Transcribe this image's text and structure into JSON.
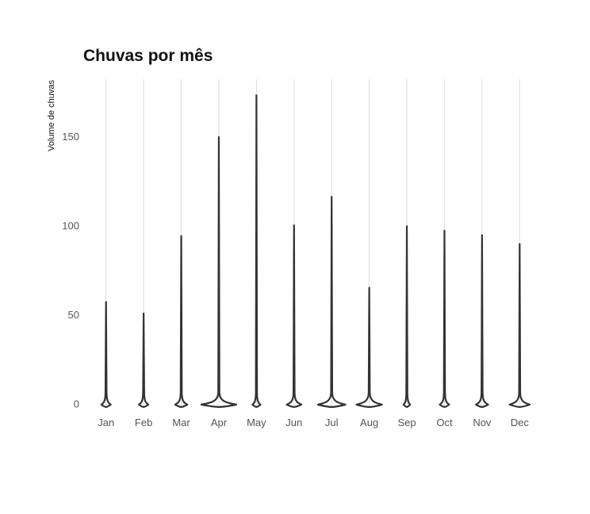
{
  "chart_data": {
    "type": "violin",
    "title": "Chuvas por mês",
    "ylabel": "Volume de chuvas",
    "xlabel": "",
    "categories": [
      "Jan",
      "Feb",
      "Mar",
      "Apr",
      "May",
      "Jun",
      "Jul",
      "Aug",
      "Sep",
      "Oct",
      "Nov",
      "Dec"
    ],
    "max_values": [
      57,
      50.5,
      94,
      149.5,
      173,
      100,
      116,
      65,
      99.5,
      97,
      94.5,
      89.5
    ],
    "base_width_relative": [
      0.27,
      0.27,
      0.35,
      1.0,
      0.23,
      0.42,
      0.79,
      0.73,
      0.19,
      0.27,
      0.35,
      0.58
    ],
    "yticks": [
      0,
      50,
      100,
      150
    ],
    "ylim": [
      -2.5,
      182
    ],
    "grid": "vertical major lines",
    "legend": "none",
    "colors": {
      "line": "#333333",
      "grid": "#dcdcdc",
      "tick_text": "#555555",
      "title": "#111111"
    }
  }
}
